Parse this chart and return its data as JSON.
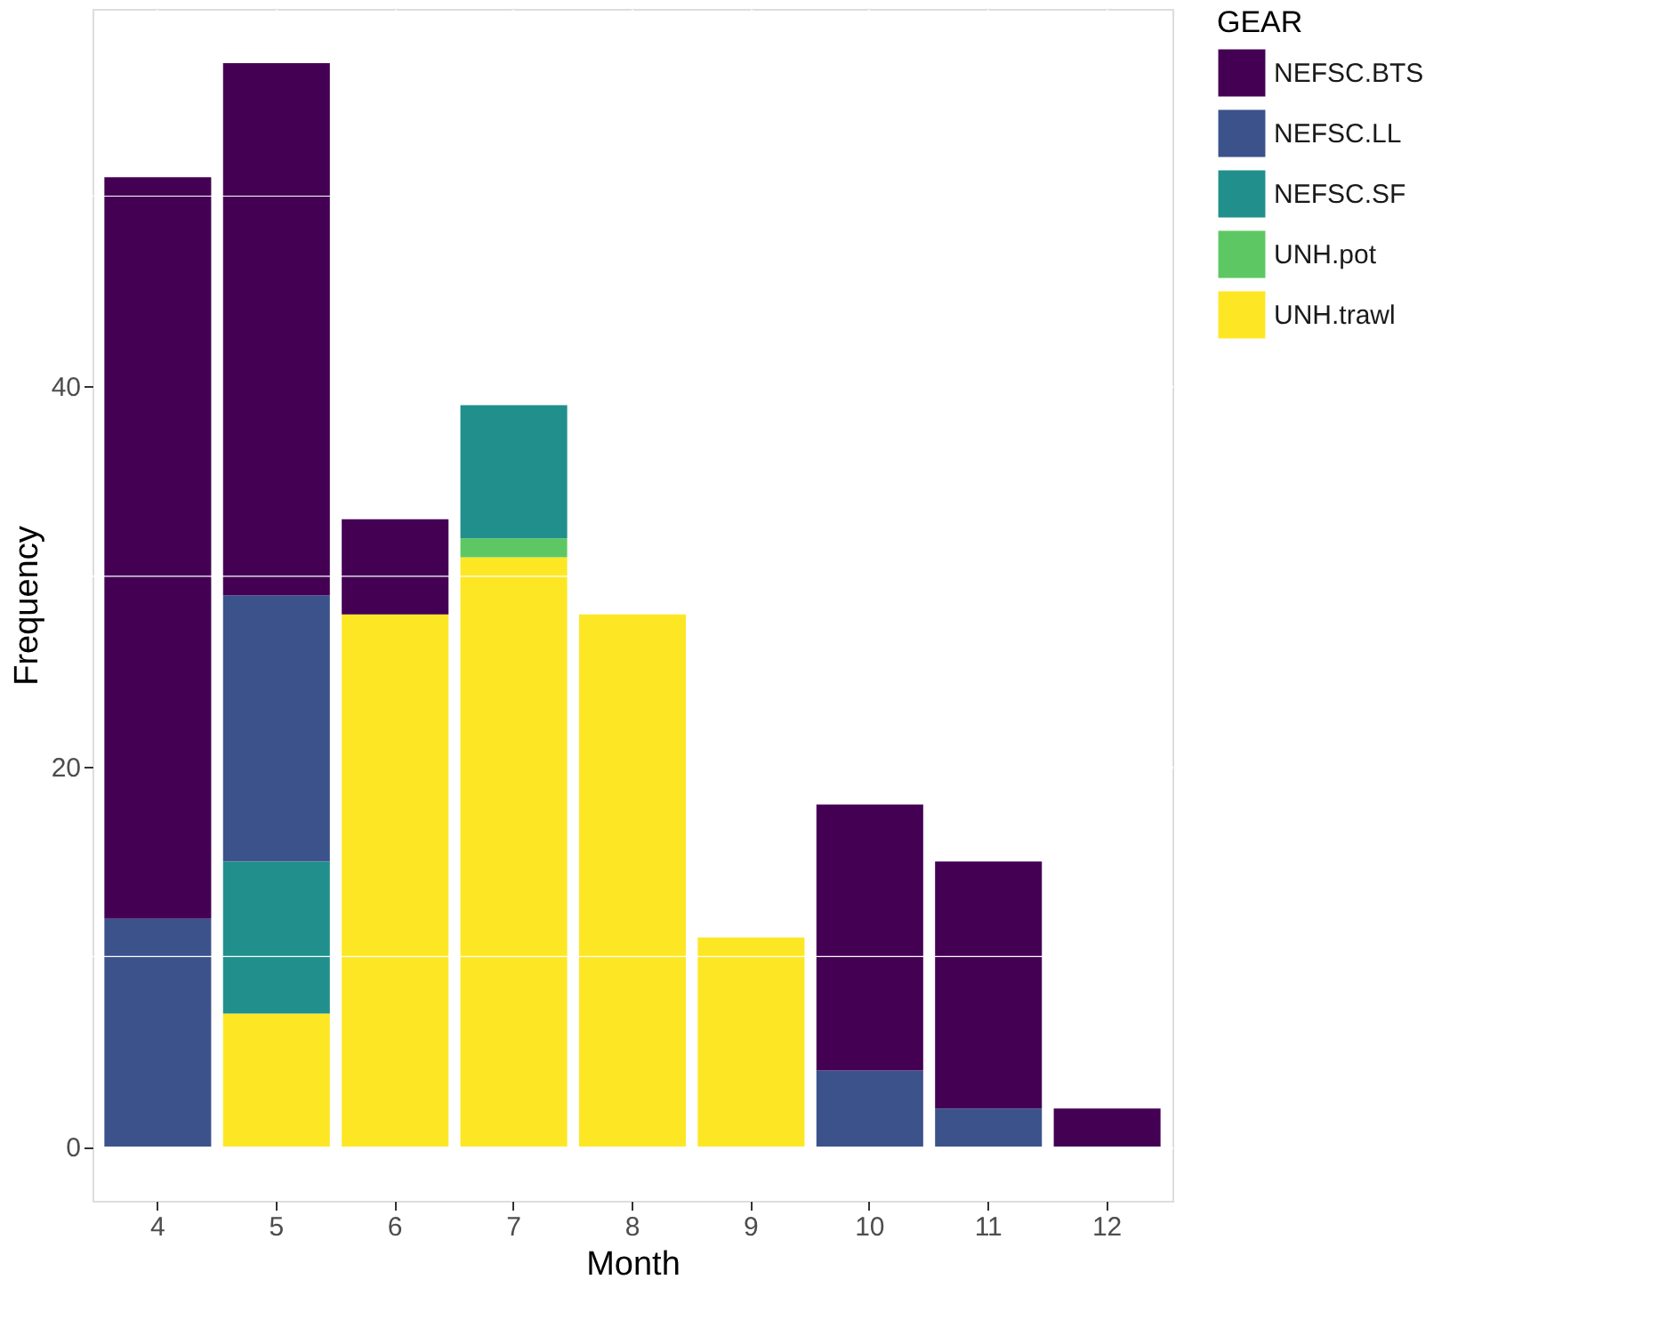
{
  "chart_data": {
    "type": "bar",
    "stacked": true,
    "xlabel": "Month",
    "ylabel": "Frequency",
    "legend_title": "GEAR",
    "categories": [
      "4",
      "5",
      "6",
      "7",
      "8",
      "9",
      "10",
      "11",
      "12"
    ],
    "series": [
      {
        "name": "UNH.trawl",
        "color": "#fde725",
        "values": [
          null,
          7,
          28,
          31,
          28,
          11,
          null,
          null,
          null
        ]
      },
      {
        "name": "UNH.pot",
        "color": "#5dc863",
        "values": [
          null,
          null,
          null,
          1,
          null,
          null,
          null,
          null,
          null
        ]
      },
      {
        "name": "NEFSC.SF",
        "color": "#21908c",
        "values": [
          null,
          8,
          null,
          7,
          null,
          null,
          null,
          null,
          null
        ]
      },
      {
        "name": "NEFSC.LL",
        "color": "#3b528b",
        "values": [
          12,
          14,
          null,
          null,
          null,
          null,
          4,
          2,
          null
        ]
      },
      {
        "name": "NEFSC.BTS",
        "color": "#440154",
        "values": [
          39,
          28,
          5,
          null,
          null,
          null,
          14,
          13,
          2
        ]
      }
    ],
    "ylim": [
      -2.85,
      59.85
    ],
    "yticks": [
      0,
      20,
      40
    ],
    "grid": true,
    "legend": "right"
  }
}
